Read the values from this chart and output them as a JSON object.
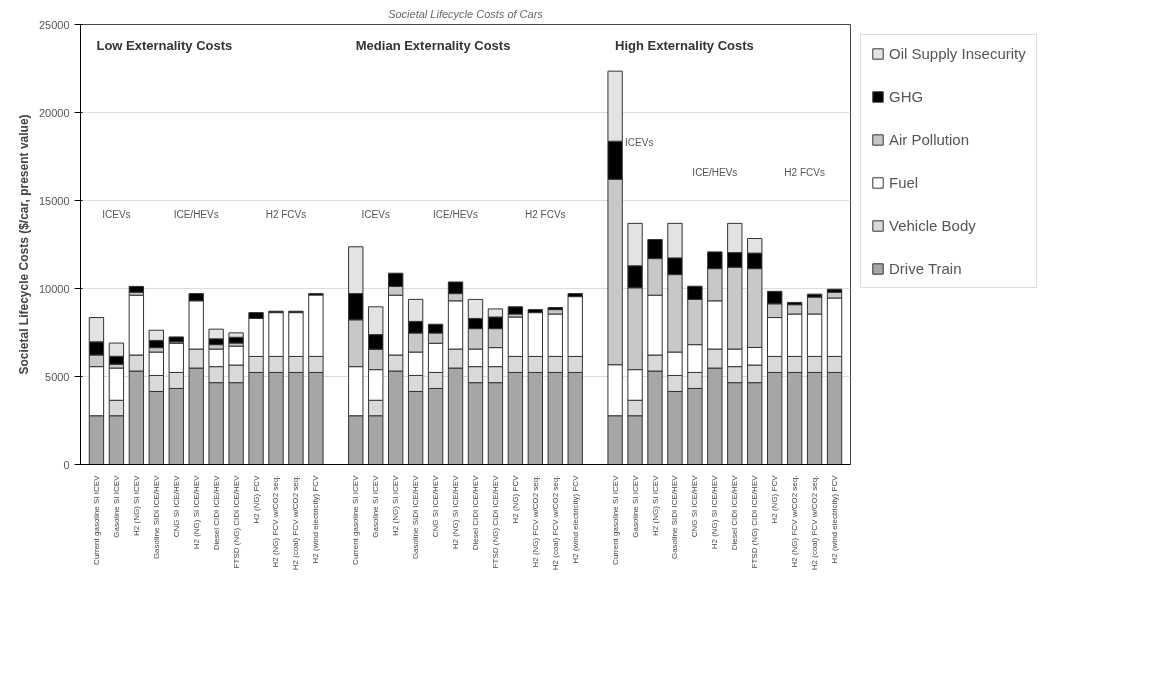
{
  "chart_data": {
    "type": "bar",
    "stacked": true,
    "title": "Societal Lifecycle Costs of Cars",
    "ylabel": "Societal Lifecycle Costs ($/car, present value)",
    "categories": [
      "Current gasoline SI ICEV",
      "Gasoline SI ICEV",
      "H2 (NG) SI ICEV",
      "Gasoline SIDI ICE/HEV",
      "CNG SI ICE/HEV",
      "H2 (NG) SI ICE/HEV",
      "Diesel CIDI ICE/HEV",
      "FTSD (NG) CIDI ICE/HEV",
      "H2 (NG) FCV",
      "H2 (NG) FCV w/CO2 seq.",
      "H2 (coal) FCV w/CO2 seq.",
      "H2 (wind electricity) FCV",
      null,
      "Current gasoline SI ICEV",
      "Gasoline SI ICEV",
      "H2 (NG) SI ICEV",
      "Gasoline SIDI ICE/HEV",
      "CNG SI ICE/HEV",
      "H2 (NG) SI ICE/HEV",
      "Diesel CIDI ICE/HEV",
      "FTSD (NG) CIDI ICE/HEV",
      "H2 (NG) FCV",
      "H2 (NG) FCV w/CO2 seq.",
      "H2 (coal) FCV w/CO2 seq.",
      "H2 (wind electricity) FCV",
      null,
      "Current gasoline SI ICEV",
      "Gasoline SI ICEV",
      "H2 (NG) SI ICEV",
      "Gasoline SIDI ICE/HEV",
      "CNG SI ICE/HEV",
      "H2 (NG) SI ICE/HEV",
      "Diesel CIDI ICE/HEV",
      "FTSD (NG) CIDI ICE/HEV",
      "H2 (NG) FCV",
      "H2 (NG) FCV w/CO2 seq.",
      "H2 (coal) FCV w/CO2 seq.",
      "H2 (wind electricity) FCV"
    ],
    "series": [
      {
        "name": "Drive Train",
        "color": "#a6a6a6",
        "values": [
          2770,
          2770,
          5310,
          4150,
          4320,
          5480,
          4650,
          4650,
          5230,
          5230,
          5230,
          5230,
          null,
          2770,
          2770,
          5310,
          4150,
          4320,
          5480,
          4650,
          4650,
          5230,
          5230,
          5230,
          5230,
          null,
          2770,
          2770,
          5310,
          4150,
          4320,
          5480,
          4650,
          4650,
          5230,
          5230,
          5230,
          5230
        ]
      },
      {
        "name": "Vehicle Body",
        "color": "#d9d9d9",
        "values": [
          null,
          880,
          910,
          910,
          910,
          1080,
          910,
          1000,
          910,
          910,
          910,
          910,
          null,
          null,
          880,
          910,
          910,
          910,
          1080,
          910,
          910,
          910,
          910,
          910,
          910,
          null,
          null,
          880,
          910,
          910,
          910,
          1080,
          910,
          1000,
          910,
          910,
          910,
          910
        ]
      },
      {
        "name": "Fuel",
        "color": "#ffffff",
        "values": [
          2790,
          1830,
          3400,
          1330,
          1660,
          2740,
          1000,
          1080,
          2160,
          2490,
          2490,
          3490,
          null,
          2790,
          1740,
          3400,
          1330,
          1660,
          2740,
          1000,
          1080,
          2240,
          2490,
          2410,
          3400,
          null,
          2900,
          1740,
          3400,
          1330,
          1580,
          2740,
          1000,
          1000,
          2210,
          2410,
          2410,
          3320
        ]
      },
      {
        "name": "Air Pollution",
        "color": "#c8c8c8",
        "values": [
          660,
          220,
          170,
          250,
          80,
          null,
          250,
          170,
          null,
          null,
          null,
          null,
          null,
          2660,
          1160,
          500,
          1080,
          580,
          410,
          1160,
          1080,
          170,
          null,
          250,
          null,
          null,
          10540,
          4650,
          2080,
          4400,
          2570,
          1830,
          4650,
          4480,
          780,
          530,
          960,
          330
        ]
      },
      {
        "name": "GHG",
        "color": "#000000",
        "values": [
          750,
          450,
          330,
          410,
          280,
          410,
          330,
          330,
          330,
          80,
          80,
          80,
          null,
          1490,
          830,
          750,
          660,
          500,
          660,
          580,
          660,
          410,
          170,
          120,
          170,
          null,
          2160,
          1250,
          1080,
          950,
          750,
          950,
          830,
          880,
          710,
          130,
          170,
          170
        ]
      },
      {
        "name": "Oil Supply Insecurity",
        "color": "#e3e3e3",
        "values": [
          1380,
          750,
          null,
          580,
          null,
          null,
          550,
          250,
          null,
          null,
          null,
          null,
          null,
          2660,
          1580,
          null,
          1250,
          null,
          null,
          1080,
          460,
          null,
          null,
          null,
          null,
          null,
          3980,
          2410,
          null,
          1960,
          null,
          null,
          1660,
          830,
          null,
          null,
          null,
          null
        ]
      }
    ],
    "annotations": [
      "Low Externality Costs",
      "ICEVs",
      "ICE/HEVs",
      "H2 FCVs",
      "Median Externality Costs",
      "ICEVs",
      "ICE/HEVs",
      "H2 FCVs",
      "High Externality Costs",
      "ICEVs",
      "ICE/HEVs",
      "H2 FCVs"
    ],
    "ylim": [
      0,
      25000
    ],
    "yticks": [
      0,
      5000,
      10000,
      15000,
      20000,
      25000
    ],
    "grid": "y",
    "legend": "right"
  }
}
